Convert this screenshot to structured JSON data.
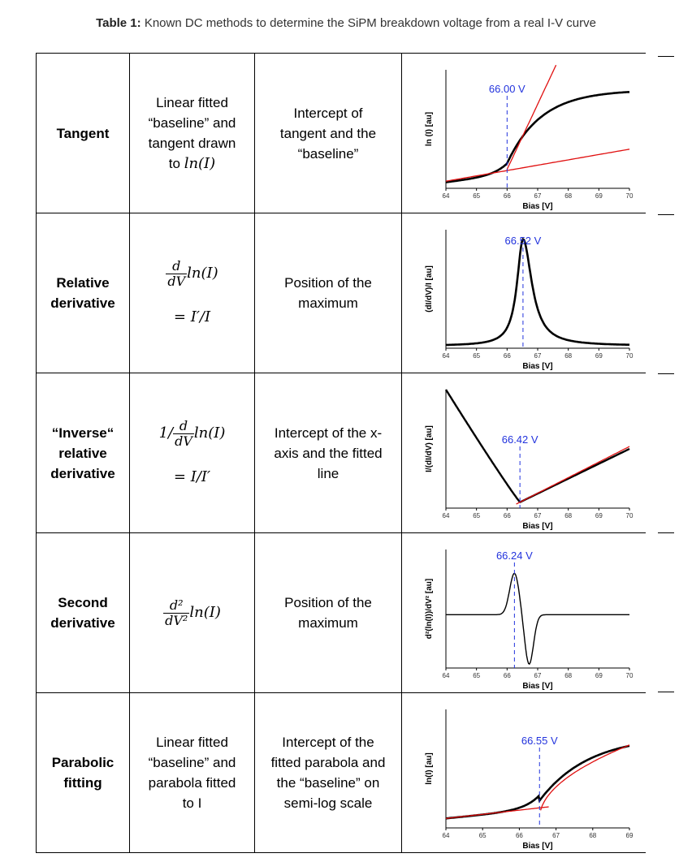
{
  "caption": {
    "bold": "Table 1:",
    "text": " Known DC methods to determine the  SiPM breakdown voltage from a real I-V curve"
  },
  "rows": [
    {
      "method": [
        "Tangent"
      ],
      "formula_text": [
        "Linear fitted",
        "“baseline” and",
        "tangent drawn",
        "to "
      ],
      "formula_math": "ln(I)",
      "criterion": [
        "Intercept of",
        "tangent and the",
        "“baseline”"
      ],
      "plot": {
        "ylabel": "ln (I) [au]",
        "xlabel": "Bias [V]",
        "xticks": [
          "64",
          "65",
          "66",
          "67",
          "68",
          "69",
          "70"
        ],
        "vb_label": "66.00 V",
        "vb": 66.0
      }
    },
    {
      "method": [
        "Relative",
        "derivative"
      ],
      "formula_num": "d",
      "formula_den": "dV",
      "formula_fn": "ln(I)",
      "formula_eq": "= I′/I",
      "criterion": [
        "Position of the",
        "maximum"
      ],
      "plot": {
        "ylabel": "(dI/dV)/I [au]",
        "xlabel": "Bias [V]",
        "xticks": [
          "64",
          "65",
          "66",
          "67",
          "68",
          "69",
          "70"
        ],
        "vb_label": "66.52 V",
        "vb": 66.52
      }
    },
    {
      "method": [
        "“Inverse“",
        "relative",
        "derivative"
      ],
      "formula_pre": "1/",
      "formula_num": "d",
      "formula_den": "dV",
      "formula_fn": "ln(I)",
      "formula_eq": "= I/I′",
      "criterion": [
        "Intercept of the x-",
        "axis and the fitted",
        "line"
      ],
      "plot": {
        "ylabel": "I/(dI/dV) [au]",
        "xlabel": "Bias [V]",
        "xticks": [
          "64",
          "65",
          "66",
          "67",
          "68",
          "69",
          "70"
        ],
        "vb_label": "66.42 V",
        "vb": 66.42
      }
    },
    {
      "method": [
        "Second",
        "derivative"
      ],
      "formula_num": "d²",
      "formula_den": "dV²",
      "formula_fn": "ln(I)",
      "criterion": [
        "Position of the",
        "maximum"
      ],
      "plot": {
        "ylabel": "d²(ln(I))/dV² [au]",
        "xlabel": "Bias [V]",
        "xticks": [
          "64",
          "65",
          "66",
          "67",
          "68",
          "69",
          "70"
        ],
        "vb_label": "66.24 V",
        "vb": 66.24
      }
    },
    {
      "method": [
        "Parabolic",
        "fitting"
      ],
      "formula_text": [
        "Linear fitted",
        "“baseline” and",
        "parabola fitted",
        "to I"
      ],
      "criterion": [
        "Intercept of the",
        "fitted parabola and",
        "the “baseline” on",
        "semi-log scale"
      ],
      "plot": {
        "ylabel": "ln(I) [au]",
        "xlabel": "Bias [V]",
        "xticks": [
          "64",
          "65",
          "66",
          "67",
          "68",
          "69"
        ],
        "vb_label": "66.55 V",
        "vb": 66.55
      }
    }
  ]
}
